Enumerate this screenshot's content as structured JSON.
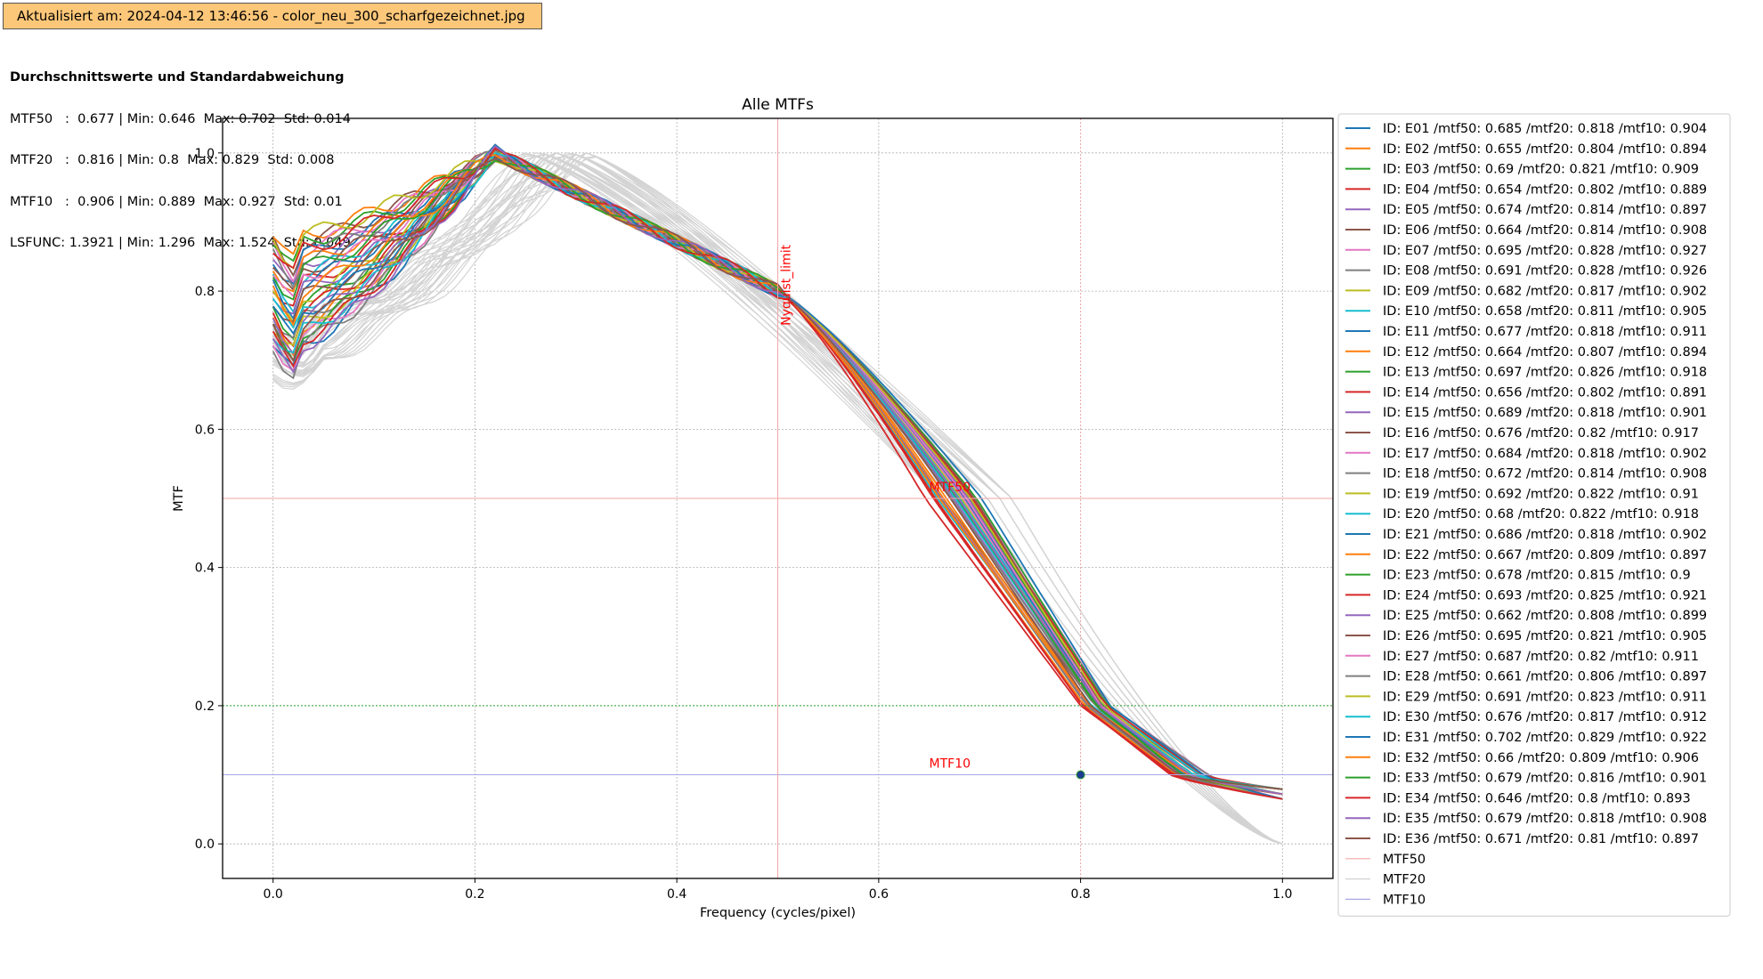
{
  "status": {
    "label": "Aktualisiert am: 2024-04-12 13:46:56 - color_neu_300_scharfgezeichnet.jpg"
  },
  "stats": {
    "heading": "Durchschnittswerte und Standardabweichung",
    "lines": [
      "MTF50   :  0.677 | Min: 0.646  Max: 0.702  Std: 0.014",
      "MTF20   :  0.816 | Min: 0.8  Max: 0.829  Std: 0.008",
      "MTF10   :  0.906 | Min: 0.889  Max: 0.927  Std: 0.01",
      "LSFUNC: 1.3921 | Min: 1.296  Max: 1.524  Std: 0.049"
    ]
  },
  "colors": {
    "tab10": [
      "#1f77b4",
      "#ff7f0e",
      "#2ca02c",
      "#d62728",
      "#9467bd",
      "#8c564b",
      "#e377c2",
      "#7f7f7f",
      "#bcbd22",
      "#17becf"
    ],
    "background_curves": "#d3d3d3",
    "mtf50_line": "#f4a6a6",
    "mtf20_line": "#2ca02c",
    "mtf10_line": "#a9a9e6",
    "marker": "#1f3a93"
  },
  "chart_data": {
    "type": "line",
    "title": "Alle MTFs",
    "xlabel": "Frequency (cycles/pixel)",
    "ylabel": "MTF",
    "xlim": [
      -0.05,
      1.05
    ],
    "ylim": [
      -0.05,
      1.05
    ],
    "xticks": [
      "0.0",
      "0.2",
      "0.4",
      "0.6",
      "0.8",
      "1.0"
    ],
    "yticks": [
      "0.0",
      "0.2",
      "0.4",
      "0.6",
      "0.8",
      "1.0"
    ],
    "grid": true,
    "legend_position": "outside-right",
    "reference_lines": [
      {
        "orientation": "horizontal",
        "y": 0.5,
        "label": "MTF50",
        "label_x": 0.65
      },
      {
        "orientation": "horizontal",
        "y": 0.2,
        "label": "",
        "label_x": null
      },
      {
        "orientation": "horizontal",
        "y": 0.1,
        "label": "MTF10",
        "label_x": 0.65
      },
      {
        "orientation": "vertical",
        "x": 0.5,
        "label": "Nyquist_limit"
      },
      {
        "orientation": "vertical",
        "x": 0.8,
        "label": ""
      }
    ],
    "marker_point": {
      "x": 0.8,
      "y": 0.1
    },
    "reference_legend": [
      "MTF50",
      "MTF20",
      "MTF10"
    ],
    "series": [
      {
        "name": "ID: E01 /mtf50: 0.685 /mtf20: 0.818 /mtf10: 0.904",
        "mtf50": 0.685,
        "mtf20": 0.818,
        "mtf10": 0.904
      },
      {
        "name": "ID: E02 /mtf50: 0.655 /mtf20: 0.804 /mtf10: 0.894",
        "mtf50": 0.655,
        "mtf20": 0.804,
        "mtf10": 0.894
      },
      {
        "name": "ID: E03 /mtf50: 0.69 /mtf20: 0.821 /mtf10: 0.909",
        "mtf50": 0.69,
        "mtf20": 0.821,
        "mtf10": 0.909
      },
      {
        "name": "ID: E04 /mtf50: 0.654 /mtf20: 0.802 /mtf10: 0.889",
        "mtf50": 0.654,
        "mtf20": 0.802,
        "mtf10": 0.889
      },
      {
        "name": "ID: E05 /mtf50: 0.674 /mtf20: 0.814 /mtf10: 0.897",
        "mtf50": 0.674,
        "mtf20": 0.814,
        "mtf10": 0.897
      },
      {
        "name": "ID: E06 /mtf50: 0.664 /mtf20: 0.814 /mtf10: 0.908",
        "mtf50": 0.664,
        "mtf20": 0.814,
        "mtf10": 0.908
      },
      {
        "name": "ID: E07 /mtf50: 0.695 /mtf20: 0.828 /mtf10: 0.927",
        "mtf50": 0.695,
        "mtf20": 0.828,
        "mtf10": 0.927
      },
      {
        "name": "ID: E08 /mtf50: 0.691 /mtf20: 0.828 /mtf10: 0.926",
        "mtf50": 0.691,
        "mtf20": 0.828,
        "mtf10": 0.926
      },
      {
        "name": "ID: E09 /mtf50: 0.682 /mtf20: 0.817 /mtf10: 0.902",
        "mtf50": 0.682,
        "mtf20": 0.817,
        "mtf10": 0.902
      },
      {
        "name": "ID: E10 /mtf50: 0.658 /mtf20: 0.811 /mtf10: 0.905",
        "mtf50": 0.658,
        "mtf20": 0.811,
        "mtf10": 0.905
      },
      {
        "name": "ID: E11 /mtf50: 0.677 /mtf20: 0.818 /mtf10: 0.911",
        "mtf50": 0.677,
        "mtf20": 0.818,
        "mtf10": 0.911
      },
      {
        "name": "ID: E12 /mtf50: 0.664 /mtf20: 0.807 /mtf10: 0.894",
        "mtf50": 0.664,
        "mtf20": 0.807,
        "mtf10": 0.894
      },
      {
        "name": "ID: E13 /mtf50: 0.697 /mtf20: 0.826 /mtf10: 0.918",
        "mtf50": 0.697,
        "mtf20": 0.826,
        "mtf10": 0.918
      },
      {
        "name": "ID: E14 /mtf50: 0.656 /mtf20: 0.802 /mtf10: 0.891",
        "mtf50": 0.656,
        "mtf20": 0.802,
        "mtf10": 0.891
      },
      {
        "name": "ID: E15 /mtf50: 0.689 /mtf20: 0.818 /mtf10: 0.901",
        "mtf50": 0.689,
        "mtf20": 0.818,
        "mtf10": 0.901
      },
      {
        "name": "ID: E16 /mtf50: 0.676 /mtf20: 0.82 /mtf10: 0.917",
        "mtf50": 0.676,
        "mtf20": 0.82,
        "mtf10": 0.917
      },
      {
        "name": "ID: E17 /mtf50: 0.684 /mtf20: 0.818 /mtf10: 0.902",
        "mtf50": 0.684,
        "mtf20": 0.818,
        "mtf10": 0.902
      },
      {
        "name": "ID: E18 /mtf50: 0.672 /mtf20: 0.814 /mtf10: 0.908",
        "mtf50": 0.672,
        "mtf20": 0.814,
        "mtf10": 0.908
      },
      {
        "name": "ID: E19 /mtf50: 0.692 /mtf20: 0.822 /mtf10: 0.91",
        "mtf50": 0.692,
        "mtf20": 0.822,
        "mtf10": 0.91
      },
      {
        "name": "ID: E20 /mtf50: 0.68 /mtf20: 0.822 /mtf10: 0.918",
        "mtf50": 0.68,
        "mtf20": 0.822,
        "mtf10": 0.918
      },
      {
        "name": "ID: E21 /mtf50: 0.686 /mtf20: 0.818 /mtf10: 0.902",
        "mtf50": 0.686,
        "mtf20": 0.818,
        "mtf10": 0.902
      },
      {
        "name": "ID: E22 /mtf50: 0.667 /mtf20: 0.809 /mtf10: 0.897",
        "mtf50": 0.667,
        "mtf20": 0.809,
        "mtf10": 0.897
      },
      {
        "name": "ID: E23 /mtf50: 0.678 /mtf20: 0.815 /mtf10: 0.9",
        "mtf50": 0.678,
        "mtf20": 0.815,
        "mtf10": 0.9
      },
      {
        "name": "ID: E24 /mtf50: 0.693 /mtf20: 0.825 /mtf10: 0.921",
        "mtf50": 0.693,
        "mtf20": 0.825,
        "mtf10": 0.921
      },
      {
        "name": "ID: E25 /mtf50: 0.662 /mtf20: 0.808 /mtf10: 0.899",
        "mtf50": 0.662,
        "mtf20": 0.808,
        "mtf10": 0.899
      },
      {
        "name": "ID: E26 /mtf50: 0.695 /mtf20: 0.821 /mtf10: 0.905",
        "mtf50": 0.695,
        "mtf20": 0.821,
        "mtf10": 0.905
      },
      {
        "name": "ID: E27 /mtf50: 0.687 /mtf20: 0.82 /mtf10: 0.911",
        "mtf50": 0.687,
        "mtf20": 0.82,
        "mtf10": 0.911
      },
      {
        "name": "ID: E28 /mtf50: 0.661 /mtf20: 0.806 /mtf10: 0.897",
        "mtf50": 0.661,
        "mtf20": 0.806,
        "mtf10": 0.897
      },
      {
        "name": "ID: E29 /mtf50: 0.691 /mtf20: 0.823 /mtf10: 0.911",
        "mtf50": 0.691,
        "mtf20": 0.823,
        "mtf10": 0.911
      },
      {
        "name": "ID: E30 /mtf50: 0.676 /mtf20: 0.817 /mtf10: 0.912",
        "mtf50": 0.676,
        "mtf20": 0.817,
        "mtf10": 0.912
      },
      {
        "name": "ID: E31 /mtf50: 0.702 /mtf20: 0.829 /mtf10: 0.922",
        "mtf50": 0.702,
        "mtf20": 0.829,
        "mtf10": 0.922
      },
      {
        "name": "ID: E32 /mtf50: 0.66 /mtf20: 0.809 /mtf10: 0.906",
        "mtf50": 0.66,
        "mtf20": 0.809,
        "mtf10": 0.906
      },
      {
        "name": "ID: E33 /mtf50: 0.679 /mtf20: 0.816 /mtf10: 0.901",
        "mtf50": 0.679,
        "mtf20": 0.816,
        "mtf10": 0.901
      },
      {
        "name": "ID: E34 /mtf50: 0.646 /mtf20: 0.8 /mtf10: 0.893",
        "mtf50": 0.646,
        "mtf20": 0.8,
        "mtf10": 0.893
      },
      {
        "name": "ID: E35 /mtf50: 0.679 /mtf20: 0.818 /mtf10: 0.908",
        "mtf50": 0.679,
        "mtf20": 0.818,
        "mtf10": 0.908
      },
      {
        "name": "ID: E36 /mtf50: 0.671 /mtf20: 0.81 /mtf10: 0.897",
        "mtf50": 0.671,
        "mtf20": 0.81,
        "mtf10": 0.897
      }
    ]
  }
}
